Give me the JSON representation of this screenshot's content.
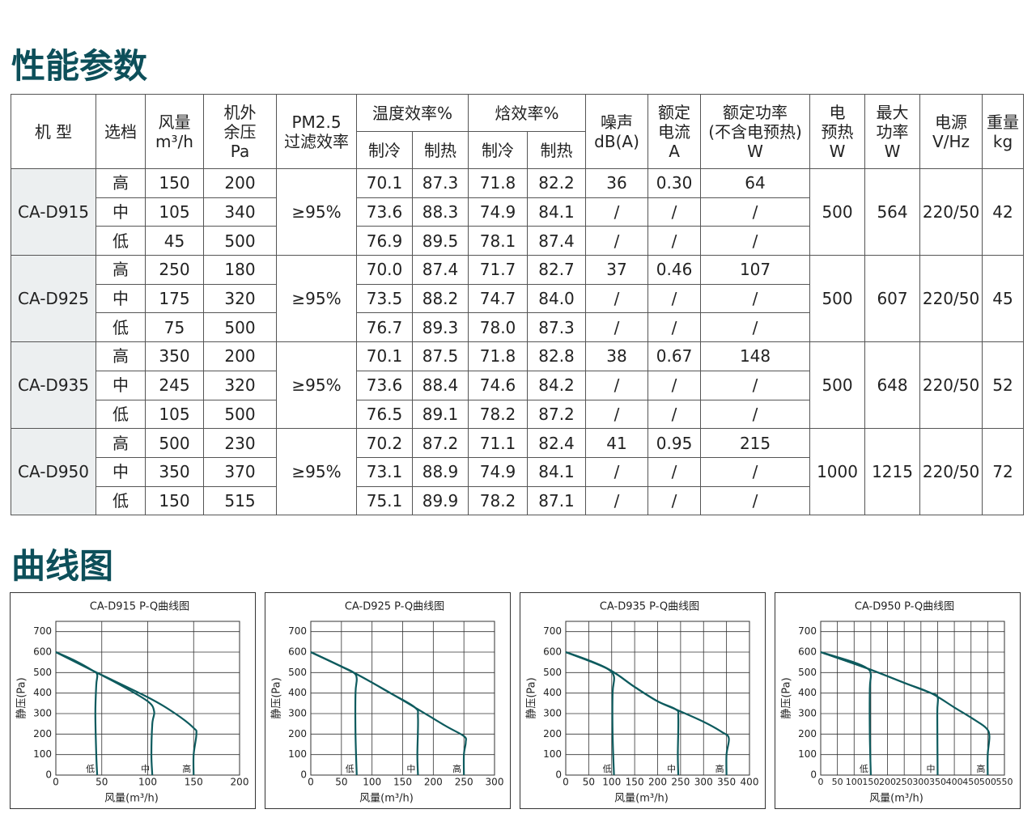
{
  "header": {
    "title": "性能参数"
  },
  "table": {
    "head": {
      "model": [
        "机 型"
      ],
      "gear": [
        "选档"
      ],
      "airflow": [
        "风量",
        "m³/h"
      ],
      "pressure": [
        "机外",
        "余压",
        "Pa"
      ],
      "filter": [
        "PM2.5",
        "过滤效率"
      ],
      "temp_eff": [
        "温度效率%"
      ],
      "enthalpy_eff": [
        "焓效率%"
      ],
      "cooling": "制冷",
      "heating": "制热",
      "noise": [
        "噪声",
        "dB(A)"
      ],
      "current": [
        "额定",
        "电流",
        "A"
      ],
      "power": [
        "额定功率",
        "(不含电预热)",
        "W"
      ],
      "heater": [
        "电",
        "预热",
        "W"
      ],
      "max_power": [
        "最大",
        "功率",
        "W"
      ],
      "supply": [
        "电源",
        "V/Hz"
      ],
      "weight": [
        "重量",
        "kg"
      ]
    },
    "models": [
      {
        "model": "CA-D915",
        "filter": "≥95%",
        "heater": "500",
        "max_power": "564",
        "supply": "220/50",
        "weight": "42",
        "rows": [
          [
            "高",
            "150",
            "200",
            "70.1",
            "87.3",
            "71.8",
            "82.2",
            "36",
            "0.30",
            "64"
          ],
          [
            "中",
            "105",
            "340",
            "73.6",
            "88.3",
            "74.9",
            "84.1",
            "/",
            "/",
            "/"
          ],
          [
            "低",
            "45",
            "500",
            "76.9",
            "89.5",
            "78.1",
            "87.4",
            "/",
            "/",
            "/"
          ]
        ]
      },
      {
        "model": "CA-D925",
        "filter": "≥95%",
        "heater": "500",
        "max_power": "607",
        "supply": "220/50",
        "weight": "45",
        "rows": [
          [
            "高",
            "250",
            "180",
            "70.0",
            "87.4",
            "71.7",
            "82.7",
            "37",
            "0.46",
            "107"
          ],
          [
            "中",
            "175",
            "320",
            "73.5",
            "88.2",
            "74.7",
            "84.0",
            "/",
            "/",
            "/"
          ],
          [
            "低",
            "75",
            "500",
            "76.7",
            "89.3",
            "78.0",
            "87.3",
            "/",
            "/",
            "/"
          ]
        ]
      },
      {
        "model": "CA-D935",
        "filter": "≥95%",
        "heater": "500",
        "max_power": "648",
        "supply": "220/50",
        "weight": "52",
        "rows": [
          [
            "高",
            "350",
            "200",
            "70.1",
            "87.5",
            "71.8",
            "82.8",
            "38",
            "0.67",
            "148"
          ],
          [
            "中",
            "245",
            "320",
            "73.6",
            "88.4",
            "74.6",
            "84.2",
            "/",
            "/",
            "/"
          ],
          [
            "低",
            "105",
            "500",
            "76.5",
            "89.1",
            "78.2",
            "87.2",
            "/",
            "/",
            "/"
          ]
        ]
      },
      {
        "model": "CA-D950",
        "filter": "≥95%",
        "heater": "1000",
        "max_power": "1215",
        "supply": "220/50",
        "weight": "72",
        "rows": [
          [
            "高",
            "500",
            "230",
            "70.2",
            "87.2",
            "71.1",
            "82.4",
            "41",
            "0.95",
            "215"
          ],
          [
            "中",
            "350",
            "370",
            "73.1",
            "88.9",
            "74.9",
            "84.1",
            "/",
            "/",
            "/"
          ],
          [
            "低",
            "150",
            "515",
            "75.1",
            "89.9",
            "78.2",
            "87.1",
            "/",
            "/",
            "/"
          ]
        ]
      }
    ]
  },
  "curves_title": "曲线图",
  "chart_data": [
    {
      "type": "line",
      "title": "CA-D915  P-Q曲线图",
      "x_label": "风量(m³/h)",
      "y_label": "静压(Pa)",
      "xlim": [
        0,
        200
      ],
      "xticks": [
        0,
        50,
        100,
        150,
        200
      ],
      "ylim": [
        0,
        750
      ],
      "yticks": [
        0,
        100,
        200,
        300,
        400,
        500,
        600,
        700
      ],
      "grid": true,
      "series": [
        {
          "name": "低",
          "color": "#0e5b5e",
          "x": [
            0,
            20,
            40,
            45,
            44,
            43,
            44,
            45
          ],
          "values": [
            600,
            560,
            510,
            490,
            440,
            300,
            100,
            0
          ]
        },
        {
          "name": "中",
          "color": "#0e5b5e",
          "x": [
            0,
            40,
            70,
            100,
            107,
            105,
            104,
            105
          ],
          "values": [
            600,
            510,
            440,
            360,
            310,
            250,
            100,
            0
          ]
        },
        {
          "name": "高",
          "color": "#0e5b5e",
          "x": [
            0,
            40,
            100,
            130,
            150,
            153,
            150,
            150
          ],
          "values": [
            600,
            510,
            380,
            300,
            230,
            200,
            100,
            0
          ]
        }
      ]
    },
    {
      "type": "line",
      "title": "CA-D925  P-Q曲线图",
      "x_label": "风量(m³/h)",
      "y_label": "静压(Pa)",
      "xlim": [
        0,
        300
      ],
      "xticks": [
        0,
        50,
        100,
        150,
        200,
        250,
        300
      ],
      "ylim": [
        0,
        750
      ],
      "yticks": [
        0,
        100,
        200,
        300,
        400,
        500,
        600,
        700
      ],
      "grid": true,
      "series": [
        {
          "name": "低",
          "color": "#0e5b5e",
          "x": [
            0,
            50,
            70,
            75,
            73,
            73,
            75
          ],
          "values": [
            600,
            530,
            500,
            470,
            400,
            200,
            0
          ]
        },
        {
          "name": "中",
          "color": "#0e5b5e",
          "x": [
            0,
            70,
            130,
            170,
            175,
            174,
            175
          ],
          "values": [
            600,
            500,
            400,
            330,
            280,
            100,
            0
          ]
        },
        {
          "name": "高",
          "color": "#0e5b5e",
          "x": [
            0,
            70,
            130,
            170,
            220,
            250,
            253,
            250,
            250
          ],
          "values": [
            600,
            500,
            400,
            330,
            240,
            190,
            160,
            100,
            0
          ]
        }
      ]
    },
    {
      "type": "line",
      "title": "CA-D935  P-Q曲线图",
      "x_label": "风量(m³/h)",
      "y_label": "静压(Pa)",
      "xlim": [
        0,
        400
      ],
      "xticks": [
        0,
        50,
        100,
        150,
        200,
        250,
        300,
        350,
        400
      ],
      "ylim": [
        0,
        750
      ],
      "yticks": [
        0,
        100,
        200,
        300,
        400,
        500,
        600,
        700
      ],
      "grid": true,
      "series": [
        {
          "name": "低",
          "color": "#0e5b5e",
          "x": [
            0,
            50,
            90,
            105,
            102,
            102,
            105
          ],
          "values": [
            600,
            560,
            520,
            480,
            400,
            200,
            0
          ]
        },
        {
          "name": "中",
          "color": "#0e5b5e",
          "x": [
            0,
            90,
            150,
            200,
            240,
            245,
            244,
            245
          ],
          "values": [
            600,
            520,
            430,
            360,
            320,
            280,
            100,
            0
          ]
        },
        {
          "name": "高",
          "color": "#0e5b5e",
          "x": [
            0,
            90,
            150,
            200,
            240,
            300,
            340,
            355,
            350,
            350
          ],
          "values": [
            600,
            520,
            430,
            360,
            320,
            260,
            210,
            180,
            100,
            0
          ]
        }
      ]
    },
    {
      "type": "line",
      "title": "CA-D950  P-Q曲线图",
      "x_label": "风量(m³/h)",
      "y_label": "静压(Pa)",
      "xlim": [
        0,
        550
      ],
      "xticks": [
        0,
        50,
        100,
        150,
        200,
        250,
        300,
        350,
        400,
        450,
        500,
        550
      ],
      "ylim": [
        0,
        750
      ],
      "yticks": [
        0,
        100,
        200,
        300,
        400,
        500,
        600,
        700
      ],
      "grid": true,
      "series": [
        {
          "name": "低",
          "color": "#0e5b5e",
          "x": [
            0,
            100,
            140,
            150,
            147,
            147,
            150
          ],
          "values": [
            600,
            550,
            520,
            490,
            420,
            200,
            0
          ]
        },
        {
          "name": "中",
          "color": "#0e5b5e",
          "x": [
            0,
            140,
            250,
            330,
            350,
            349,
            350
          ],
          "values": [
            600,
            520,
            450,
            400,
            380,
            300,
            0
          ]
        },
        {
          "name": "高",
          "color": "#0e5b5e",
          "x": [
            0,
            140,
            250,
            330,
            400,
            460,
            495,
            505,
            500,
            500
          ],
          "values": [
            600,
            520,
            450,
            400,
            330,
            270,
            230,
            190,
            100,
            0
          ]
        }
      ]
    }
  ]
}
